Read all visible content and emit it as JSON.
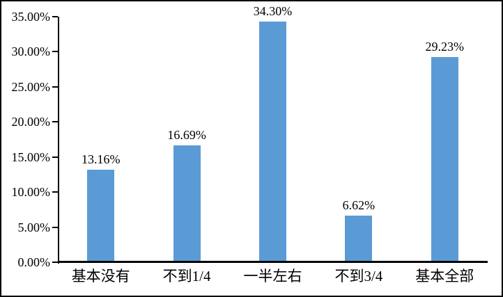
{
  "chart_data": {
    "type": "bar",
    "title": "",
    "xlabel": "",
    "ylabel": "",
    "categories": [
      "基本没有",
      "不到1/4",
      "一半左右",
      "不到3/4",
      "基本全部"
    ],
    "values": [
      13.16,
      16.69,
      34.3,
      6.62,
      29.23
    ],
    "data_labels": [
      "13.16%",
      "16.69%",
      "34.30%",
      "6.62%",
      "29.23%"
    ],
    "y_tick_labels": [
      "0.00%",
      "5.00%",
      "10.00%",
      "15.00%",
      "20.00%",
      "25.00%",
      "30.00%",
      "35.00%"
    ],
    "y_tick_step": 5,
    "ylim": [
      0,
      35
    ],
    "grid": false,
    "legend": "none",
    "bar_color": "#5B9BD5",
    "axis_color": "#000000",
    "background": "#FFFFFF"
  }
}
